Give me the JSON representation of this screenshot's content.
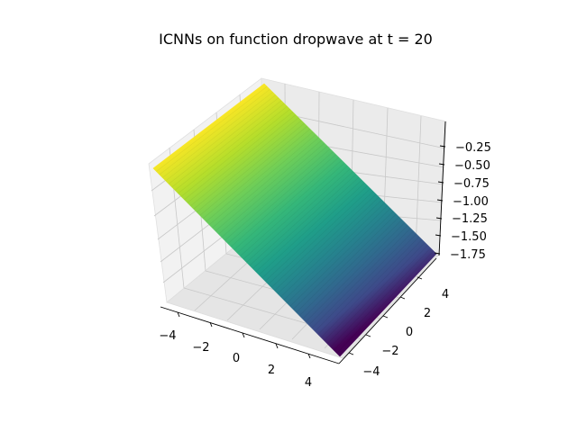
{
  "chart_data": {
    "type": "surface3d",
    "title": "ICNNs on function dropwave at t = 20",
    "xlabel": "",
    "ylabel": "",
    "zlabel": "",
    "xlim": [
      -5,
      5
    ],
    "ylim": [
      -5,
      5
    ],
    "zlim": [
      -1.85,
      -0.15
    ],
    "x_ticks": [
      "−4",
      "−2",
      "0",
      "2",
      "4"
    ],
    "y_ticks": [
      "−4",
      "−2",
      "0",
      "2",
      "4"
    ],
    "z_ticks": [
      "−1.75",
      "−1.50",
      "−1.25",
      "−1.00",
      "−0.75",
      "−0.50",
      "−0.25"
    ],
    "colormap": "viridis",
    "grid": true,
    "surface_corners": [
      {
        "x": -5,
        "y": 5,
        "z": -0.15
      },
      {
        "x": 5,
        "y": 5,
        "z": -1.2
      },
      {
        "x": 5,
        "y": -5,
        "z": -1.85
      },
      {
        "x": -5,
        "y": -5,
        "z": -0.8
      }
    ]
  }
}
